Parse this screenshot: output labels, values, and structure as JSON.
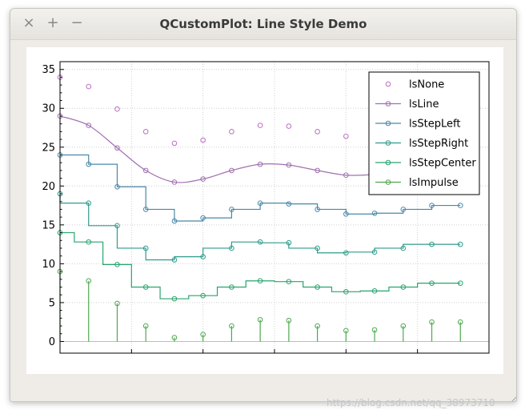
{
  "window": {
    "title": "QCustomPlot: Line Style Demo",
    "close_glyph": "×",
    "maximize_glyph": "+",
    "minimize_glyph": "−"
  },
  "watermark": "https://blog.csdn.net/qq_38973710",
  "chart_data": {
    "type": "line",
    "title": "",
    "xlabel": "",
    "ylabel": "",
    "xlim": [
      0,
      15
    ],
    "ylim": [
      -1.5,
      36
    ],
    "yticks": [
      0,
      5,
      10,
      15,
      20,
      25,
      30,
      35
    ],
    "grid": true,
    "legend_position": "top-right",
    "x": [
      0,
      1,
      2,
      3,
      4,
      5,
      6,
      7,
      8,
      9,
      10,
      11,
      12,
      13,
      14
    ],
    "series": [
      {
        "name": "lsNone",
        "style": "none",
        "color": "#b96fc0",
        "values": [
          34,
          32.8,
          29.9,
          27,
          25.5,
          25.9,
          27,
          27.8,
          27.7,
          27,
          26.4,
          26.5,
          27,
          27.5,
          27.5
        ]
      },
      {
        "name": "lsLine",
        "style": "line",
        "color": "#a070b0",
        "values": [
          29,
          27.8,
          24.9,
          22,
          20.5,
          20.9,
          22,
          22.8,
          22.7,
          22,
          21.4,
          21.5,
          22,
          22.5,
          22.5
        ]
      },
      {
        "name": "lsStepLeft",
        "style": "stepLeft",
        "color": "#4a88a8",
        "values": [
          24,
          22.8,
          19.9,
          17,
          15.5,
          15.9,
          17,
          17.8,
          17.7,
          17,
          16.4,
          16.5,
          17,
          17.5,
          17.5
        ]
      },
      {
        "name": "lsStepRight",
        "style": "stepRight",
        "color": "#2f9b8c",
        "values": [
          19,
          17.8,
          14.9,
          12,
          10.5,
          10.9,
          12,
          12.8,
          12.7,
          12,
          11.4,
          11.5,
          12,
          12.5,
          12.5
        ]
      },
      {
        "name": "lsStepCenter",
        "style": "stepCenter",
        "color": "#28a56e",
        "values": [
          14,
          12.8,
          9.9,
          7,
          5.5,
          5.9,
          7,
          7.8,
          7.7,
          7,
          6.4,
          6.5,
          7,
          7.5,
          7.5
        ]
      },
      {
        "name": "lsImpulse",
        "style": "impulse",
        "color": "#4fa84f",
        "values": [
          9,
          7.8,
          4.9,
          2,
          0.5,
          0.9,
          2,
          2.8,
          2.7,
          2,
          1.4,
          1.5,
          2,
          2.5,
          2.5
        ]
      }
    ]
  }
}
